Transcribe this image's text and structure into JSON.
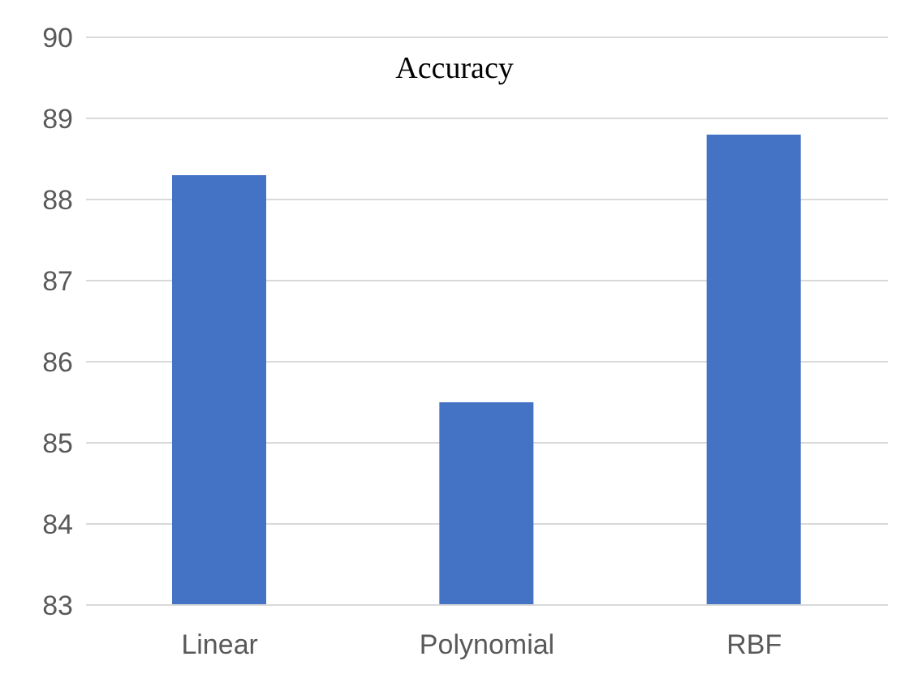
{
  "chart_data": {
    "type": "bar",
    "title": "Accuracy",
    "categories": [
      "Linear",
      "Polynomial",
      "RBF"
    ],
    "series": [
      {
        "color": "#4472c4",
        "values": [
          88.3,
          85.5,
          88.8
        ]
      }
    ],
    "ylim": [
      83,
      90
    ],
    "yticks": [
      83,
      84,
      85,
      86,
      87,
      88,
      89,
      90
    ],
    "grid": "y"
  }
}
